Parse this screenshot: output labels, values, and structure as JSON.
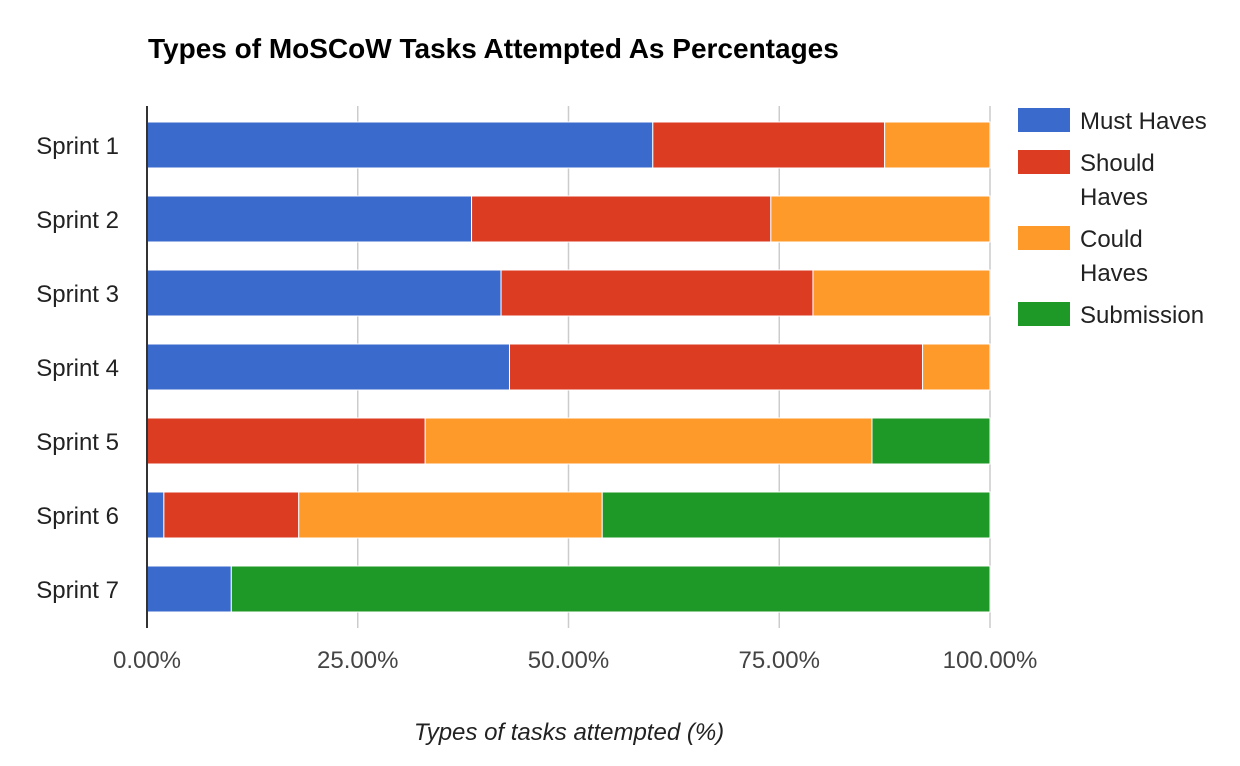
{
  "chart_data": {
    "type": "bar",
    "orientation": "horizontal",
    "stacked": true,
    "title": "Types of MoSCoW Tasks Attempted As Percentages",
    "xlabel": "Types of tasks attempted (%)",
    "ylabel": "",
    "xlim": [
      0,
      100
    ],
    "x_ticks": [
      0,
      25,
      50,
      75,
      100
    ],
    "x_tick_labels": [
      "0.00%",
      "25.00%",
      "50.00%",
      "75.00%",
      "100.00%"
    ],
    "grid": true,
    "legend_position": "right",
    "categories": [
      "Sprint 1",
      "Sprint 2",
      "Sprint 3",
      "Sprint 4",
      "Sprint 5",
      "Sprint 6",
      "Sprint 7"
    ],
    "series": [
      {
        "name": "Must Haves",
        "legend_lines": [
          "Must Haves"
        ],
        "color": "#3a6bcc",
        "values": [
          60,
          38.5,
          42,
          43,
          0,
          2,
          10
        ]
      },
      {
        "name": "Should Haves",
        "legend_lines": [
          "Should",
          "Haves"
        ],
        "color": "#db3c22",
        "values": [
          27.5,
          35.5,
          37,
          49,
          33,
          16,
          0
        ]
      },
      {
        "name": "Could Haves",
        "legend_lines": [
          "Could",
          "Haves"
        ],
        "color": "#fd9a2a",
        "values": [
          12.5,
          26,
          21,
          8,
          53,
          36,
          0
        ]
      },
      {
        "name": "Submission",
        "legend_lines": [
          "Submission"
        ],
        "color": "#1e9826",
        "values": [
          0,
          0,
          0,
          0,
          14,
          46,
          90
        ]
      }
    ]
  }
}
